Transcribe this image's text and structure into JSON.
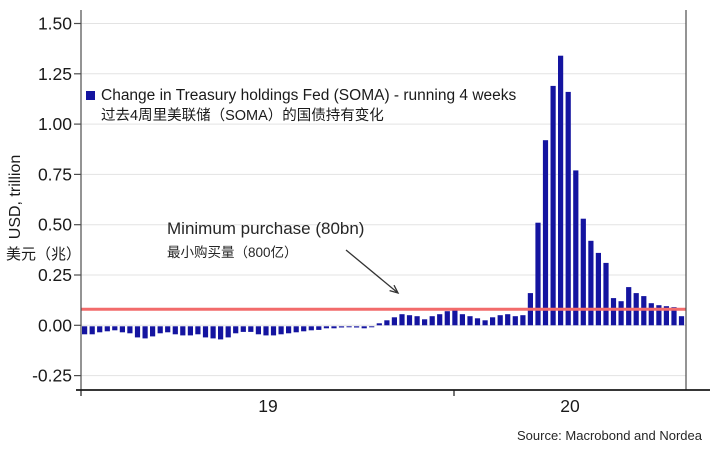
{
  "chart_data": {
    "type": "bar",
    "title": "",
    "series": [
      {
        "name": "Change in Treasury holdings Fed (SOMA) - running 4 weeks",
        "values": [
          -0.04,
          -0.04,
          -0.03,
          -0.025,
          -0.02,
          -0.03,
          -0.035,
          -0.055,
          -0.06,
          -0.05,
          -0.035,
          -0.03,
          -0.04,
          -0.045,
          -0.045,
          -0.04,
          -0.055,
          -0.06,
          -0.065,
          -0.055,
          -0.035,
          -0.028,
          -0.028,
          -0.04,
          -0.045,
          -0.045,
          -0.04,
          -0.035,
          -0.03,
          -0.025,
          -0.02,
          -0.018,
          -0.01,
          -0.01,
          -0.006,
          -0.005,
          -0.006,
          -0.01,
          -0.005,
          0.01,
          0.025,
          0.04,
          0.055,
          0.05,
          0.045,
          0.03,
          0.045,
          0.055,
          0.07,
          0.08,
          0.055,
          0.045,
          0.035,
          0.025,
          0.04,
          0.05,
          0.055,
          0.045,
          0.05,
          0.16,
          0.51,
          0.92,
          1.19,
          1.34,
          1.16,
          0.77,
          0.53,
          0.42,
          0.36,
          0.31,
          0.135,
          0.12,
          0.19,
          0.16,
          0.145,
          0.11,
          0.1,
          0.095,
          0.09,
          0.045
        ]
      }
    ],
    "ylabel_en": "USD, trillion",
    "ylabel_zh": "美元（兆）",
    "y_ticks": [
      1.5,
      1.25,
      1.0,
      0.75,
      0.5,
      0.25,
      0.0,
      -0.25
    ],
    "ylim": [
      -0.32,
      1.55
    ],
    "x_tick_labels": [
      "19",
      "20"
    ],
    "grid": true,
    "legend_position": "upper-left-inside",
    "reference_line": {
      "value": 0.08,
      "label": "Minimum purchase (80bn)"
    },
    "colors": {
      "bar": "#1414a0",
      "reference_line": "#f26b6b",
      "grid": "#e3e3e3",
      "axis_border": "#4d4d4d",
      "bottom_axis": "#1a1a1a",
      "text": "#1a1a1a"
    }
  },
  "legend": {
    "line1": "Change in Treasury holdings Fed (SOMA) - running 4 weeks",
    "line2": "过去4周里美联储（SOMA）的国债持有变化"
  },
  "annotation": {
    "line1": "Minimum purchase (80bn)",
    "line2": "最小购买量（800亿）"
  },
  "axis": {
    "ylabel_en": "USD, trillion",
    "ylabel_zh": "美元（兆）"
  },
  "source": "Source: Macrobond and Nordea"
}
